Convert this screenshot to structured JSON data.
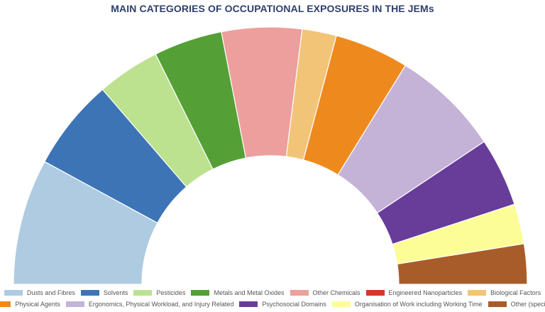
{
  "chart_data": {
    "type": "pie",
    "variant": "semi-circle donut",
    "title": "MAIN CATEGORIES OF OCCUPATIONAL EXPOSURES IN THE JEMs",
    "legend_position": "bottom",
    "series": [
      {
        "name": "Dusts and Fibres",
        "value": 11,
        "color": "#aecbe2"
      },
      {
        "name": "Solvents",
        "value": 8,
        "color": "#3d74b6"
      },
      {
        "name": "Pesticides",
        "value": 5.5,
        "color": "#bce18f"
      },
      {
        "name": "Metals and Metal Oxides",
        "value": 6,
        "color": "#54a036"
      },
      {
        "name": "Other Chemicals",
        "value": 7,
        "color": "#ec9f9c"
      },
      {
        "name": "Engineered Nanoparticles",
        "value": 0,
        "color": "#d3382b"
      },
      {
        "name": "Biological Factors",
        "value": 3,
        "color": "#f2c477"
      },
      {
        "name": "Physical Agents",
        "value": 6.5,
        "color": "#ee8a1d"
      },
      {
        "name": "Ergonomics, Physical Workload, and Injury Related",
        "value": 9.5,
        "color": "#c5b2d7"
      },
      {
        "name": "Psychosocial Domains",
        "value": 6,
        "color": "#673d99"
      },
      {
        "name": "Organisation of Work including Working Time",
        "value": 3.5,
        "color": "#fdfd98"
      },
      {
        "name": "Other (specify)",
        "value": 3.5,
        "color": "#a85c29"
      }
    ],
    "legend_rows": [
      [
        0,
        1,
        2,
        3,
        4,
        5,
        6
      ],
      [
        7,
        8,
        9,
        10,
        11
      ]
    ]
  }
}
